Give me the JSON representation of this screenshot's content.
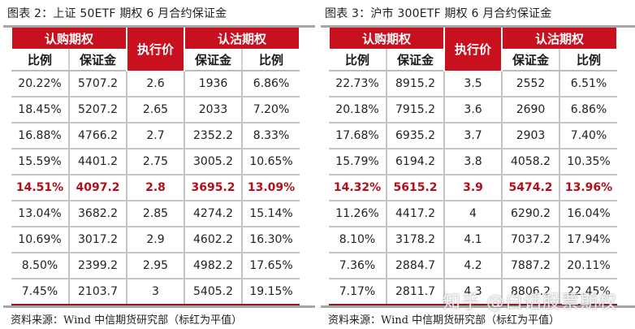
{
  "colors": {
    "header_red": "#c8101e",
    "atm_text_red": "#b0101c",
    "grid_gray": "#c4c4c4",
    "rule_gray": "#a6a6a6"
  },
  "tables": [
    {
      "title": "图表 2：上证 50ETF 期权 6 月合约保证金",
      "header": {
        "call_group": "认购期权",
        "strike": "执行价",
        "put_group": "认沽期权",
        "call_ratio": "比例",
        "call_margin": "保证金",
        "put_margin": "保证金",
        "put_ratio": "比例"
      },
      "rows": [
        {
          "call_ratio": "20.22%",
          "call_margin": "5707.2",
          "strike": "2.6",
          "put_margin": "1936",
          "put_ratio": "6.86%"
        },
        {
          "call_ratio": "18.45%",
          "call_margin": "5207.2",
          "strike": "2.65",
          "put_margin": "2033",
          "put_ratio": "7.20%"
        },
        {
          "call_ratio": "16.88%",
          "call_margin": "4766.2",
          "strike": "2.7",
          "put_margin": "2352.2",
          "put_ratio": "8.33%"
        },
        {
          "call_ratio": "15.59%",
          "call_margin": "4401.2",
          "strike": "2.75",
          "put_margin": "3005.2",
          "put_ratio": "10.65%"
        },
        {
          "call_ratio": "14.51%",
          "call_margin": "4097.2",
          "strike": "2.8",
          "put_margin": "3695.2",
          "put_ratio": "13.09%",
          "atm": true
        },
        {
          "call_ratio": "13.04%",
          "call_margin": "3682.2",
          "strike": "2.85",
          "put_margin": "4274.2",
          "put_ratio": "15.14%"
        },
        {
          "call_ratio": "10.69%",
          "call_margin": "3017.2",
          "strike": "2.9",
          "put_margin": "4602.2",
          "put_ratio": "16.30%"
        },
        {
          "call_ratio": "8.50%",
          "call_margin": "2399.2",
          "strike": "2.95",
          "put_margin": "4982.2",
          "put_ratio": "17.65%"
        },
        {
          "call_ratio": "7.45%",
          "call_margin": "2103.7",
          "strike": "3",
          "put_margin": "5405.2",
          "put_ratio": "19.15%"
        }
      ],
      "source": "资料来源：Wind 中信期货研究部（标红为平值）"
    },
    {
      "title": "图表 3：沪市 300ETF 期权 6 月合约保证金",
      "header": {
        "call_group": "认购期权",
        "strike": "执行价",
        "put_group": "认沽期权",
        "call_ratio": "比例",
        "call_margin": "保证金",
        "put_margin": "保证金",
        "put_ratio": "比例"
      },
      "rows": [
        {
          "call_ratio": "22.73%",
          "call_margin": "8915.2",
          "strike": "3.5",
          "put_margin": "2552",
          "put_ratio": "6.51%"
        },
        {
          "call_ratio": "20.18%",
          "call_margin": "7915.2",
          "strike": "3.6",
          "put_margin": "2690",
          "put_ratio": "6.86%"
        },
        {
          "call_ratio": "17.68%",
          "call_margin": "6935.2",
          "strike": "3.7",
          "put_margin": "2903",
          "put_ratio": "7.40%"
        },
        {
          "call_ratio": "15.79%",
          "call_margin": "6194.2",
          "strike": "3.8",
          "put_margin": "4058.2",
          "put_ratio": "10.35%"
        },
        {
          "call_ratio": "14.32%",
          "call_margin": "5615.2",
          "strike": "3.9",
          "put_margin": "5474.2",
          "put_ratio": "13.96%",
          "atm": true
        },
        {
          "call_ratio": "11.26%",
          "call_margin": "4417.2",
          "strike": "4",
          "put_margin": "6290.2",
          "put_ratio": "16.04%"
        },
        {
          "call_ratio": "8.10%",
          "call_margin": "3178.2",
          "strike": "4.1",
          "put_margin": "7037.2",
          "put_ratio": "17.94%"
        },
        {
          "call_ratio": "7.36%",
          "call_margin": "2884.7",
          "strike": "4.2",
          "put_margin": "7887.2",
          "put_ratio": "20.11%"
        },
        {
          "call_ratio": "7.17%",
          "call_margin": "2811.7",
          "strike": "4.3",
          "put_margin": "8806.2",
          "put_ratio": "22.45%"
        }
      ],
      "source": "资料来源：Wind 中信期货研究部（标红为平值）"
    }
  ],
  "watermark": "知乎 @白话股票期权"
}
